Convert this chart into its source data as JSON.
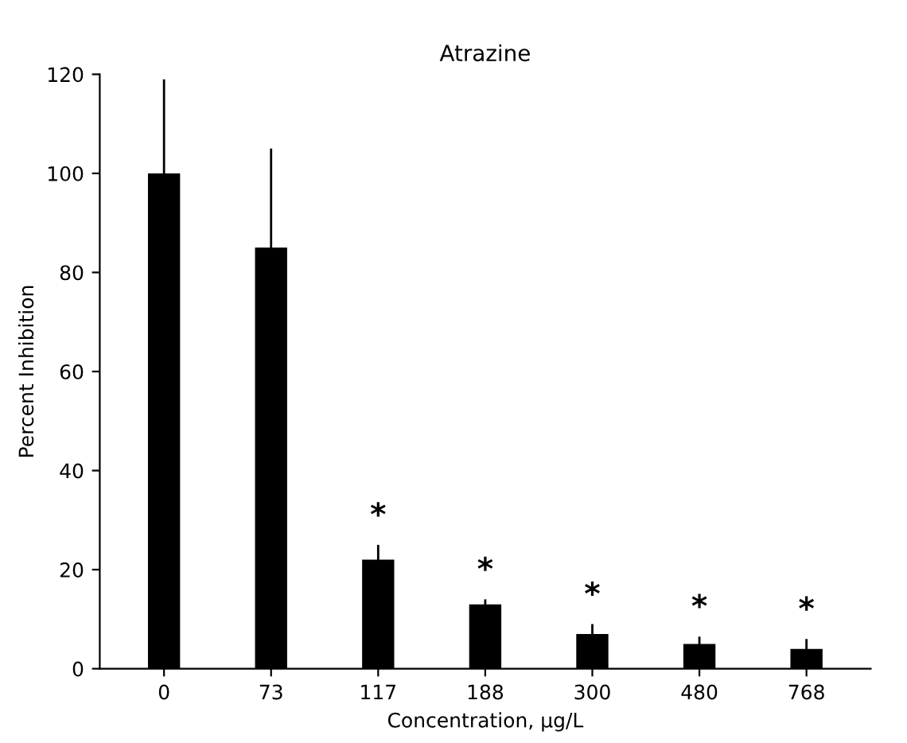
{
  "chart_data": {
    "type": "bar",
    "title": "Atrazine",
    "xlabel": "Concentration, µg/L",
    "ylabel": "Percent Inhibition",
    "categories": [
      "0",
      "73",
      "117",
      "188",
      "300",
      "480",
      "768"
    ],
    "values": [
      100,
      85,
      22,
      13,
      7,
      5,
      4
    ],
    "errors": [
      19,
      20,
      3,
      1,
      2,
      1.5,
      2
    ],
    "color": "#000000",
    "ylim": [
      0,
      120
    ],
    "yticks": [
      0,
      20,
      40,
      60,
      80,
      100,
      120
    ],
    "grid": false,
    "annotations": [
      "*",
      "*",
      "*",
      "*",
      "*"
    ]
  }
}
